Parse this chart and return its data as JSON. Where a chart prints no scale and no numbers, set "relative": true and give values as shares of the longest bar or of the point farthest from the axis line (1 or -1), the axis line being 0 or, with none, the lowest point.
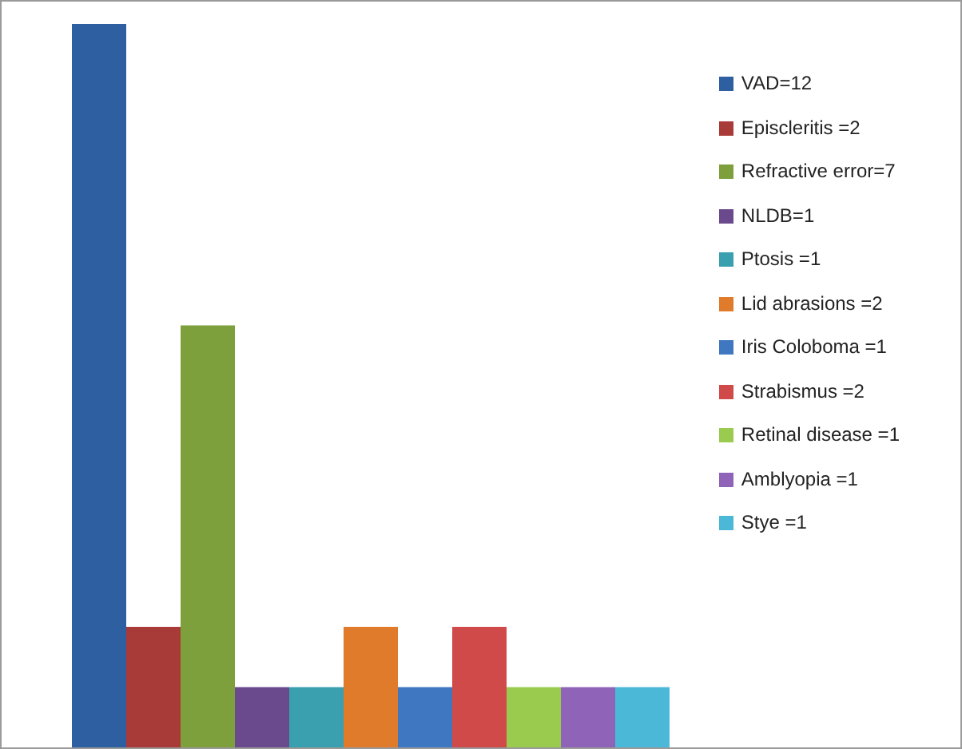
{
  "chart_data": {
    "type": "bar",
    "categories": [
      null
    ],
    "legend": "top right",
    "relative": true,
    "series": [
      {
        "name": "VAD=12",
        "color": "#2e5fa0",
        "values": [
          1
        ]
      },
      {
        "name": "Episcleritis =2",
        "color": "#a83a37",
        "values": [
          0.1667
        ]
      },
      {
        "name": "Refractive error=7",
        "color": "#7ea03c",
        "values": [
          0.5833
        ]
      },
      {
        "name": "NLDB=1",
        "color": "#6a4a8c",
        "values": [
          0.0833
        ]
      },
      {
        "name": "Ptosis =1",
        "color": "#3a9fae",
        "values": [
          0.0833
        ]
      },
      {
        "name": "Lid abrasions =2",
        "color": "#e07b2c",
        "values": [
          0.1667
        ]
      },
      {
        "name": "Iris Coloboma =1",
        "color": "#3f77c0",
        "values": [
          0.0833
        ]
      },
      {
        "name": "Strabismus =2",
        "color": "#d04a4a",
        "values": [
          0.1667
        ]
      },
      {
        "name": "Retinal disease =1",
        "color": "#9acb4f",
        "values": [
          0.0833
        ]
      },
      {
        "name": "Amblyopia =1",
        "color": "#8f64b8",
        "values": [
          0.0833
        ]
      },
      {
        "name": "Stye =1",
        "color": "#4bb8d8",
        "values": [
          0.0833
        ]
      }
    ]
  }
}
